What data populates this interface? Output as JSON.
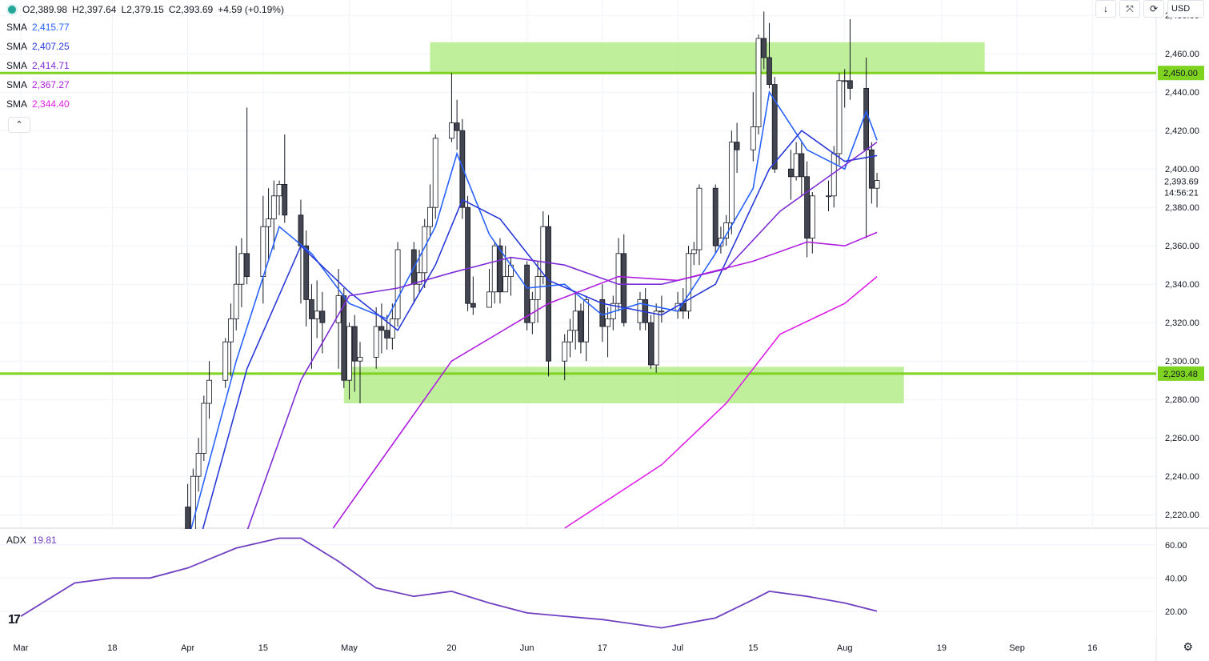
{
  "ohlc": {
    "open": "O2,389.98",
    "high": "H2,397.64",
    "low": "L2,379.15",
    "close": "C2,393.69",
    "change": "+4.59 (+0.19%)"
  },
  "sma": [
    {
      "name": "SMA",
      "value": "2,415.77",
      "color": "#2962ff"
    },
    {
      "name": "SMA",
      "value": "2,407.25",
      "color": "#2a3ad8"
    },
    {
      "name": "SMA",
      "value": "2,414.71",
      "color": "#7e2ed6"
    },
    {
      "name": "SMA",
      "value": "2,367.27",
      "color": "#b01ee0"
    },
    {
      "name": "SMA",
      "value": "2,344.40",
      "color": "#e020e8"
    }
  ],
  "toolbar": {
    "arrow": "↓",
    "compress": "⤧",
    "refresh": "⟳",
    "currency": "USD"
  },
  "collapse_glyph": "⌃",
  "adx": {
    "name": "ADX",
    "value": "19.81",
    "color": "#6f3fc1"
  },
  "logo": "17",
  "settings_icon": "gear-icon",
  "chart_data": {
    "type": "candlestick",
    "price_axis": {
      "ticks": [
        "2,480.00",
        "2,460.00",
        "2,440.00",
        "2,420.00",
        "2,400.00",
        "2,380.00",
        "2,360.00",
        "2,340.00",
        "2,320.00",
        "2,300.00",
        "2,280.00",
        "2,260.00",
        "2,240.00",
        "2,220.00"
      ],
      "range": [
        2213,
        2488
      ]
    },
    "price_badges": [
      {
        "value": "2,450.00",
        "level": 2450
      },
      {
        "value": "2,293.48",
        "level": 2293.48
      }
    ],
    "last_price": {
      "value": "2,393.69",
      "countdown": "14:56:21",
      "level": 2393.69
    },
    "x_axis_labels": [
      "Mar",
      "18",
      "Apr",
      "15",
      "May",
      "20",
      "Jun",
      "17",
      "Jul",
      "15",
      "Aug",
      "19",
      "Sep",
      "16"
    ],
    "horizontal_lines": [
      2450,
      2293.48
    ],
    "zones": [
      {
        "from_day": "2024-05-16",
        "to_day": "2024-08-27",
        "low": 2450,
        "high": 2466
      },
      {
        "from_day": "2024-04-30",
        "to_day": "2024-08-12",
        "low": 2278,
        "high": 2297
      }
    ],
    "adx_axis": {
      "ticks": [
        "60.00",
        "40.00",
        "20.00"
      ],
      "range": [
        5,
        70
      ]
    },
    "colors": {
      "up": "#ffffff",
      "down": "#434651",
      "wick": "#131722",
      "line": "#7ed321",
      "zone": "#b5ec8a",
      "adx": "#6f3fc1"
    },
    "sma_series_colors": [
      "#2962ff",
      "#2a3ad8",
      "#7e2ed6",
      "#b01ee0",
      "#e020e8"
    ]
  }
}
